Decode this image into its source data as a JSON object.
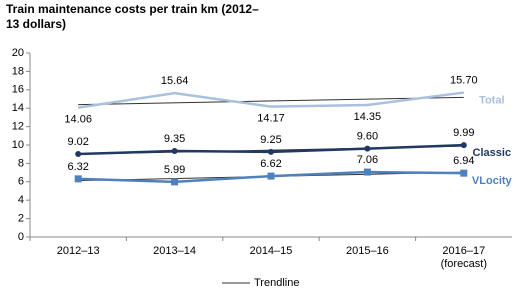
{
  "chart_data": {
    "type": "line",
    "title": "Train maintenance costs per train km (2012–13 dollars)",
    "categories": [
      "2012–13",
      "2013–14",
      "2014–15",
      "2015–16",
      "2016–17 (forecast)"
    ],
    "series": [
      {
        "name": "Total",
        "color": "#a9c0de",
        "marker": "none",
        "values": [
          14.06,
          15.64,
          14.17,
          14.35,
          15.7
        ],
        "value_labels": [
          "14.06",
          "15.64",
          "14.17",
          "14.35",
          "15.70"
        ]
      },
      {
        "name": "Classic",
        "color": "#1f3864",
        "marker": "circle",
        "values": [
          9.02,
          9.35,
          9.25,
          9.6,
          9.99
        ],
        "value_labels": [
          "9.02",
          "9.35",
          "9.25",
          "9.60",
          "9.99"
        ]
      },
      {
        "name": "VLocity",
        "color": "#4f81bd",
        "marker": "square",
        "values": [
          6.32,
          5.99,
          6.62,
          7.06,
          6.94
        ],
        "value_labels": [
          "6.32",
          "5.99",
          "6.62",
          "7.06",
          "6.94"
        ]
      }
    ],
    "trendline_label": "Trendline",
    "ylim": [
      0,
      20
    ],
    "yticks": [
      0,
      2,
      4,
      6,
      8,
      10,
      12,
      14,
      16,
      18,
      20
    ]
  }
}
